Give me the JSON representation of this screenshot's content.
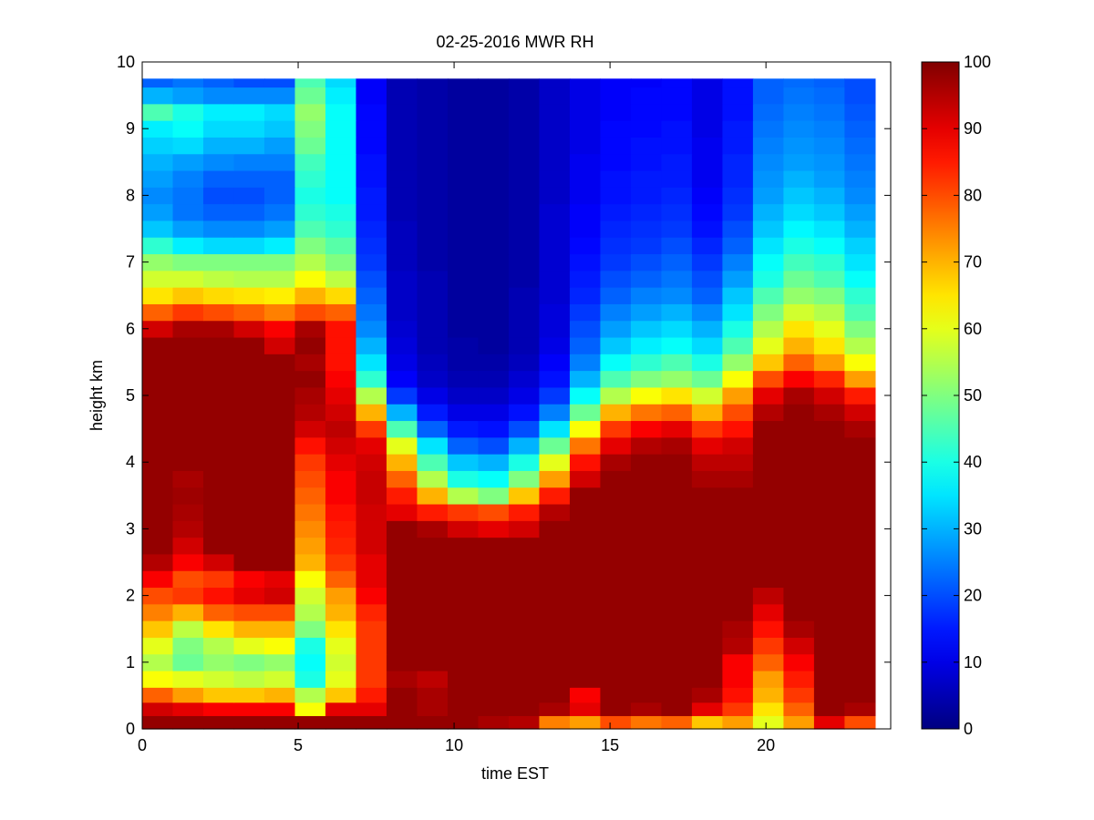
{
  "chart_data": {
    "type": "heatmap",
    "title": "02-25-2016 MWR RH",
    "xlabel": "time EST",
    "ylabel": "height km",
    "xlim": [
      0,
      24
    ],
    "ylim": [
      0,
      10
    ],
    "x_ticks": [
      0,
      5,
      10,
      15,
      20
    ],
    "y_ticks": [
      0,
      1,
      2,
      3,
      4,
      5,
      6,
      7,
      8,
      9,
      10
    ],
    "colorbar": {
      "colormap": "jet",
      "range": [
        0,
        100
      ],
      "ticks": [
        0,
        10,
        20,
        30,
        40,
        50,
        60,
        70,
        80,
        90,
        100
      ]
    },
    "time_hours": [
      0,
      1,
      2,
      3,
      4,
      5,
      6,
      7,
      8,
      9,
      10,
      11,
      12,
      13,
      14,
      15,
      16,
      17,
      18,
      19,
      20,
      21,
      22,
      23
    ],
    "height_km": [
      0.1,
      0.3,
      0.5,
      0.75,
      1.0,
      1.25,
      1.5,
      1.75,
      2.0,
      2.25,
      2.5,
      2.75,
      3.0,
      3.25,
      3.5,
      3.75,
      4.0,
      4.25,
      4.5,
      4.75,
      5.0,
      5.25,
      5.5,
      5.75,
      6.0,
      6.25,
      6.5,
      6.75,
      7.0,
      7.25,
      7.5,
      7.75,
      8.0,
      8.25,
      8.5,
      8.75,
      9.0,
      9.25,
      9.5,
      9.75
    ],
    "rh_percent": [
      [
        98,
        98,
        98,
        98,
        98,
        98,
        98,
        98,
        98,
        98,
        98,
        96,
        95,
        75,
        72,
        80,
        76,
        78,
        68,
        72,
        60,
        72,
        90,
        80
      ],
      [
        92,
        90,
        88,
        88,
        88,
        62,
        90,
        90,
        98,
        96,
        98,
        98,
        98,
        96,
        90,
        98,
        96,
        98,
        90,
        82,
        65,
        78,
        98,
        96
      ],
      [
        78,
        72,
        68,
        68,
        70,
        55,
        68,
        85,
        98,
        96,
        98,
        98,
        98,
        98,
        88,
        98,
        98,
        98,
        96,
        86,
        70,
        82,
        98,
        98
      ],
      [
        62,
        60,
        58,
        56,
        58,
        40,
        60,
        82,
        96,
        94,
        98,
        98,
        98,
        98,
        98,
        98,
        98,
        98,
        98,
        88,
        72,
        85,
        98,
        98
      ],
      [
        55,
        48,
        52,
        50,
        52,
        38,
        58,
        82,
        98,
        98,
        98,
        98,
        98,
        98,
        98,
        98,
        98,
        98,
        98,
        88,
        78,
        88,
        98,
        98
      ],
      [
        60,
        50,
        55,
        60,
        62,
        40,
        60,
        82,
        98,
        98,
        98,
        98,
        98,
        98,
        98,
        98,
        98,
        98,
        98,
        95,
        82,
        92,
        98,
        98
      ],
      [
        68,
        56,
        65,
        70,
        70,
        50,
        65,
        82,
        98,
        98,
        98,
        98,
        98,
        98,
        98,
        98,
        98,
        98,
        98,
        96,
        86,
        96,
        98,
        98
      ],
      [
        75,
        70,
        78,
        80,
        80,
        55,
        70,
        84,
        98,
        98,
        98,
        98,
        98,
        98,
        98,
        98,
        98,
        98,
        98,
        98,
        90,
        98,
        98,
        98
      ],
      [
        80,
        82,
        86,
        90,
        92,
        58,
        72,
        88,
        98,
        98,
        98,
        98,
        98,
        98,
        98,
        98,
        98,
        98,
        98,
        98,
        94,
        98,
        98,
        98
      ],
      [
        88,
        80,
        82,
        88,
        90,
        62,
        78,
        90,
        98,
        98,
        98,
        98,
        98,
        98,
        98,
        98,
        98,
        98,
        98,
        98,
        98,
        98,
        98,
        98
      ],
      [
        95,
        88,
        92,
        98,
        98,
        70,
        82,
        90,
        98,
        98,
        98,
        98,
        98,
        98,
        98,
        98,
        98,
        98,
        98,
        98,
        98,
        98,
        98,
        98
      ],
      [
        98,
        92,
        98,
        98,
        98,
        72,
        84,
        92,
        98,
        98,
        98,
        98,
        98,
        98,
        98,
        98,
        98,
        98,
        98,
        98,
        98,
        98,
        98,
        98
      ],
      [
        98,
        95,
        98,
        98,
        98,
        74,
        85,
        92,
        98,
        96,
        92,
        90,
        92,
        98,
        98,
        98,
        98,
        98,
        98,
        98,
        98,
        98,
        98,
        98
      ],
      [
        98,
        96,
        98,
        98,
        98,
        76,
        86,
        92,
        90,
        85,
        82,
        80,
        85,
        95,
        98,
        98,
        98,
        98,
        98,
        98,
        98,
        98,
        98,
        98
      ],
      [
        98,
        97,
        98,
        98,
        98,
        78,
        88,
        93,
        85,
        70,
        55,
        50,
        68,
        85,
        98,
        98,
        98,
        98,
        98,
        98,
        98,
        98,
        98,
        98
      ],
      [
        98,
        96,
        98,
        98,
        98,
        80,
        88,
        93,
        78,
        55,
        40,
        38,
        50,
        72,
        92,
        98,
        98,
        98,
        96,
        96,
        98,
        98,
        98,
        98
      ],
      [
        98,
        98,
        98,
        98,
        98,
        82,
        90,
        92,
        70,
        45,
        32,
        30,
        40,
        60,
        86,
        96,
        98,
        98,
        94,
        94,
        98,
        98,
        98,
        98
      ],
      [
        98,
        98,
        98,
        98,
        98,
        86,
        92,
        90,
        60,
        35,
        22,
        20,
        30,
        48,
        76,
        90,
        95,
        96,
        90,
        92,
        98,
        98,
        98,
        98
      ],
      [
        98,
        98,
        98,
        98,
        98,
        92,
        94,
        82,
        45,
        22,
        15,
        14,
        20,
        35,
        62,
        82,
        88,
        90,
        82,
        86,
        98,
        98,
        98,
        96
      ],
      [
        98,
        98,
        98,
        98,
        98,
        95,
        92,
        70,
        30,
        15,
        10,
        10,
        14,
        25,
        48,
        70,
        76,
        78,
        70,
        80,
        95,
        98,
        96,
        92
      ],
      [
        98,
        98,
        98,
        98,
        98,
        96,
        90,
        55,
        18,
        10,
        7,
        7,
        10,
        18,
        38,
        55,
        62,
        65,
        58,
        72,
        90,
        96,
        92,
        85
      ],
      [
        98,
        98,
        98,
        98,
        98,
        98,
        88,
        42,
        12,
        7,
        5,
        5,
        8,
        14,
        30,
        45,
        50,
        52,
        48,
        62,
        80,
        88,
        84,
        72
      ],
      [
        98,
        98,
        98,
        98,
        98,
        96,
        86,
        35,
        10,
        6,
        4,
        4,
        6,
        12,
        25,
        38,
        42,
        45,
        40,
        52,
        68,
        78,
        72,
        62
      ],
      [
        98,
        98,
        98,
        98,
        92,
        98,
        86,
        30,
        9,
        5,
        4,
        3,
        5,
        10,
        22,
        32,
        36,
        38,
        34,
        45,
        60,
        70,
        65,
        55
      ],
      [
        92,
        96,
        96,
        92,
        88,
        96,
        86,
        26,
        8,
        5,
        3,
        3,
        5,
        9,
        20,
        28,
        32,
        34,
        30,
        40,
        55,
        65,
        60,
        50
      ],
      [
        78,
        82,
        80,
        78,
        75,
        80,
        78,
        24,
        7,
        5,
        3,
        3,
        5,
        9,
        18,
        25,
        28,
        30,
        26,
        35,
        50,
        58,
        55,
        45
      ],
      [
        65,
        68,
        66,
        65,
        64,
        70,
        66,
        22,
        7,
        5,
        3,
        3,
        5,
        8,
        16,
        22,
        25,
        26,
        22,
        32,
        45,
        52,
        50,
        42
      ],
      [
        58,
        58,
        56,
        55,
        55,
        62,
        56,
        20,
        7,
        5,
        3,
        3,
        4,
        8,
        15,
        20,
        22,
        24,
        20,
        28,
        40,
        48,
        45,
        38
      ],
      [
        52,
        50,
        50,
        50,
        50,
        55,
        50,
        18,
        6,
        4,
        3,
        3,
        4,
        8,
        14,
        18,
        20,
        22,
        18,
        25,
        38,
        44,
        42,
        35
      ],
      [
        42,
        36,
        34,
        34,
        36,
        50,
        46,
        17,
        6,
        4,
        3,
        3,
        4,
        8,
        13,
        17,
        18,
        20,
        16,
        22,
        35,
        40,
        38,
        33
      ],
      [
        32,
        28,
        26,
        26,
        28,
        45,
        42,
        16,
        6,
        4,
        3,
        3,
        4,
        8,
        12,
        16,
        17,
        18,
        14,
        20,
        32,
        37,
        35,
        30
      ],
      [
        28,
        24,
        22,
        22,
        24,
        42,
        40,
        15,
        5,
        4,
        3,
        3,
        4,
        8,
        12,
        15,
        16,
        17,
        13,
        18,
        30,
        34,
        32,
        28
      ],
      [
        26,
        24,
        20,
        20,
        22,
        40,
        38,
        15,
        5,
        4,
        3,
        3,
        4,
        7,
        11,
        14,
        15,
        16,
        12,
        17,
        28,
        32,
        30,
        26
      ],
      [
        28,
        25,
        22,
        22,
        22,
        42,
        38,
        14,
        5,
        4,
        3,
        3,
        4,
        7,
        11,
        14,
        15,
        15,
        11,
        16,
        27,
        30,
        28,
        25
      ],
      [
        30,
        28,
        26,
        25,
        25,
        44,
        38,
        14,
        5,
        4,
        3,
        3,
        4,
        7,
        11,
        13,
        14,
        15,
        11,
        16,
        26,
        28,
        27,
        24
      ],
      [
        33,
        34,
        30,
        30,
        28,
        48,
        38,
        13,
        5,
        4,
        3,
        3,
        4,
        7,
        10,
        13,
        14,
        14,
        11,
        15,
        25,
        27,
        26,
        23
      ],
      [
        36,
        38,
        34,
        34,
        32,
        50,
        38,
        13,
        5,
        4,
        3,
        3,
        4,
        7,
        10,
        13,
        13,
        14,
        10,
        15,
        24,
        26,
        25,
        22
      ],
      [
        45,
        40,
        36,
        36,
        34,
        52,
        38,
        13,
        5,
        4,
        3,
        3,
        4,
        7,
        10,
        12,
        13,
        13,
        10,
        14,
        23,
        25,
        24,
        21
      ],
      [
        30,
        28,
        26,
        26,
        26,
        48,
        36,
        12,
        5,
        4,
        3,
        3,
        4,
        7,
        10,
        12,
        13,
        13,
        10,
        14,
        22,
        24,
        23,
        20
      ],
      [
        22,
        24,
        22,
        20,
        20,
        45,
        34,
        12,
        5,
        4,
        3,
        3,
        4,
        7,
        10,
        12,
        12,
        13,
        10,
        14,
        22,
        23,
        22,
        20
      ]
    ]
  }
}
